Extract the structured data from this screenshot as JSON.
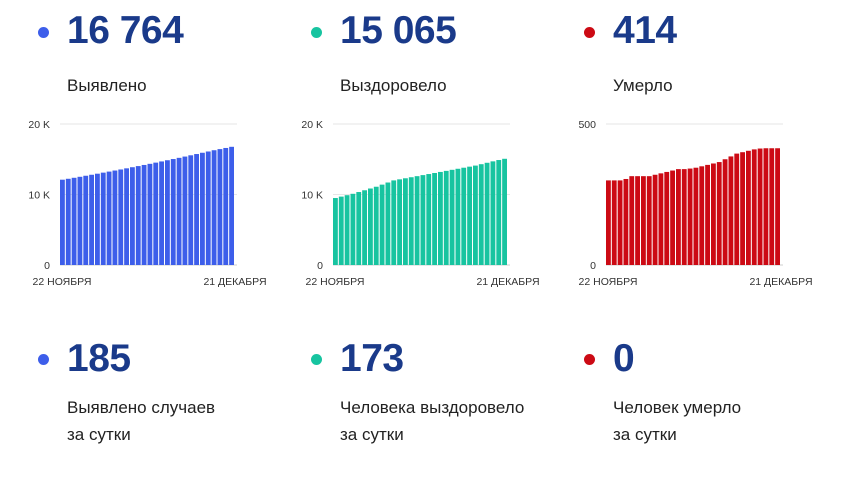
{
  "colors": {
    "blue": "#3d5eea",
    "teal": "#17c4a0",
    "red": "#cc0a14",
    "number": "#1a3a8a"
  },
  "totals": [
    {
      "value": "16 764",
      "label": "Выявлено"
    },
    {
      "value": "15 065",
      "label": "Выздоровело"
    },
    {
      "value": "414",
      "label": "Умерло"
    }
  ],
  "daily": [
    {
      "value": "185",
      "label_line1": "Выявлено случаев",
      "label_line2": "за сутки"
    },
    {
      "value": "173",
      "label_line1": "Человека выздоровело",
      "label_line2": "за сутки"
    },
    {
      "value": "0",
      "label_line1": "Человек умерло",
      "label_line2": "за сутки"
    }
  ],
  "chart_data": [
    {
      "type": "bar",
      "x_start": "22 НОЯБРЯ",
      "x_end": "21 ДЕКАБРЯ",
      "y_ticks": [
        {
          "v": 0,
          "label": "0"
        },
        {
          "v": 10000,
          "label": "10 K"
        },
        {
          "v": 20000,
          "label": "20 K"
        }
      ],
      "ylim": [
        0,
        20000
      ],
      "values": [
        12100,
        12230,
        12370,
        12510,
        12660,
        12800,
        12950,
        13100,
        13250,
        13400,
        13550,
        13710,
        13870,
        14030,
        14190,
        14350,
        14520,
        14690,
        14860,
        15030,
        15200,
        15380,
        15560,
        15740,
        15920,
        16100,
        16280,
        16440,
        16600,
        16764
      ]
    },
    {
      "type": "bar",
      "x_start": "22 НОЯБРЯ",
      "x_end": "21 ДЕКАБРЯ",
      "y_ticks": [
        {
          "v": 0,
          "label": "0"
        },
        {
          "v": 10000,
          "label": "10 K"
        },
        {
          "v": 20000,
          "label": "20 K"
        }
      ],
      "ylim": [
        0,
        20000
      ],
      "values": [
        9500,
        9700,
        9900,
        10100,
        10350,
        10600,
        10850,
        11100,
        11400,
        11700,
        12000,
        12150,
        12300,
        12450,
        12600,
        12750,
        12900,
        13050,
        13200,
        13350,
        13500,
        13650,
        13800,
        13950,
        14100,
        14300,
        14500,
        14700,
        14890,
        15065
      ]
    },
    {
      "type": "bar",
      "x_start": "22 НОЯБРЯ",
      "x_end": "21 ДЕКАБРЯ",
      "y_ticks": [
        {
          "v": 0,
          "label": "0"
        },
        {
          "v": 500,
          "label": "500"
        }
      ],
      "ylim": [
        0,
        500
      ],
      "values": [
        300,
        300,
        300,
        305,
        315,
        315,
        315,
        315,
        320,
        325,
        330,
        335,
        340,
        340,
        342,
        345,
        350,
        355,
        360,
        365,
        375,
        385,
        395,
        400,
        405,
        410,
        413,
        414,
        414,
        414
      ]
    }
  ]
}
